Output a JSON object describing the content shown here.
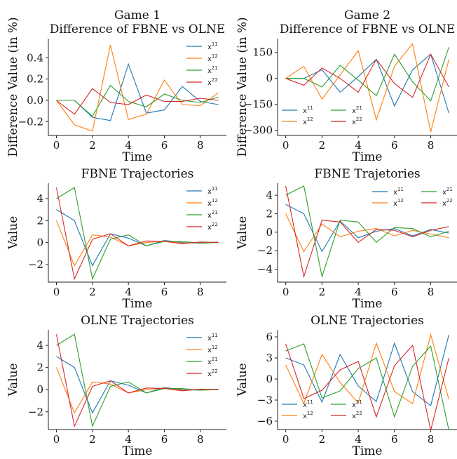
{
  "colors": {
    "x11": "#1f77b4",
    "x12": "#ff7f0e",
    "x21": "#2ca02c",
    "x22": "#d62728"
  },
  "chart_data": [
    {
      "type": "line",
      "title": "Game 1\nDifference of FBNE vs OLNE",
      "xlabel": "Time",
      "ylabel": "Difference Value (in %)",
      "xlim": [
        -0.45,
        9.45
      ],
      "ylim": [
        -0.33,
        0.58
      ],
      "xticks": [
        0,
        2,
        4,
        6,
        8
      ],
      "yticks": [
        -0.2,
        0.0,
        0.2,
        0.4
      ],
      "ytick_labels": [
        "−0.2",
        "0.0",
        "0.2",
        "0.4"
      ],
      "legend": "top-right-column",
      "x": [
        0,
        1,
        2,
        3,
        4,
        5,
        6,
        7,
        8,
        9
      ],
      "series": [
        {
          "name": "x11",
          "values": [
            0,
            0,
            -0.16,
            -0.19,
            0.34,
            -0.12,
            -0.09,
            0.13,
            -0.01,
            -0.04
          ]
        },
        {
          "name": "x12",
          "values": [
            0,
            -0.23,
            -0.29,
            0.52,
            -0.18,
            -0.13,
            0.19,
            -0.04,
            -0.05,
            0.07
          ]
        },
        {
          "name": "x21",
          "values": [
            0,
            0,
            -0.15,
            0.14,
            -0.01,
            -0.06,
            0.06,
            0.0,
            -0.02,
            0.03
          ]
        },
        {
          "name": "x22",
          "values": [
            0,
            -0.13,
            0.11,
            -0.02,
            -0.04,
            0.05,
            -0.01,
            -0.01,
            0.02,
            0.0
          ]
        }
      ]
    },
    {
      "type": "line",
      "title": "Game 2\nDifference of FBNE vs OLNE",
      "xlabel": "Time",
      "ylabel": "Difference Value (in %)",
      "xlim": [
        -0.45,
        9.45
      ],
      "ylim": [
        -330,
        230
      ],
      "xticks": [
        0,
        2,
        4,
        6,
        8
      ],
      "yticks": [
        -300,
        -150,
        0,
        150
      ],
      "ytick_labels": [
        "−300",
        "−150",
        "0",
        "150"
      ],
      "legend": "bottom-left-two-columns",
      "x": [
        0,
        1,
        2,
        3,
        4,
        5,
        6,
        7,
        8,
        9
      ],
      "series": [
        {
          "name": "x11",
          "values": [
            0,
            0,
            50,
            -80,
            10,
            110,
            -160,
            50,
            140,
            -200
          ]
        },
        {
          "name": "x12",
          "values": [
            0,
            70,
            -120,
            20,
            160,
            -240,
            70,
            200,
            -310,
            110
          ]
        },
        {
          "name": "x21",
          "values": [
            0,
            0,
            -50,
            75,
            -10,
            -100,
            140,
            -20,
            -130,
            180
          ]
        },
        {
          "name": "x22",
          "values": [
            0,
            -40,
            60,
            0,
            -80,
            110,
            -30,
            -110,
            140,
            -50
          ]
        }
      ]
    },
    {
      "type": "line",
      "title": "FBNE Trajectories",
      "xlabel": "Time",
      "ylabel": "Value",
      "xlim": [
        -0.45,
        9.45
      ],
      "ylim": [
        -3.6,
        5.4
      ],
      "xticks": [
        0,
        2,
        4,
        6,
        8
      ],
      "yticks": [
        -2,
        0,
        2,
        4
      ],
      "ytick_labels": [
        "−2",
        "0",
        "2",
        "4"
      ],
      "legend": "top-right-column",
      "x": [
        0,
        1,
        2,
        3,
        4,
        5,
        6,
        7,
        8,
        9
      ],
      "series": [
        {
          "name": "x11",
          "values": [
            3,
            2,
            -2.1,
            0.8,
            0.4,
            -0.3,
            0.2,
            0.0,
            -0.05,
            0.05
          ]
        },
        {
          "name": "x12",
          "values": [
            2,
            -2.1,
            0.7,
            0.5,
            -0.3,
            0.0,
            0.15,
            -0.05,
            0.0,
            0.02
          ]
        },
        {
          "name": "x21",
          "values": [
            4,
            5,
            -3.3,
            0.3,
            0.7,
            -0.3,
            0.1,
            0.1,
            -0.05,
            0.0
          ]
        },
        {
          "name": "x22",
          "values": [
            5,
            -3.3,
            0.3,
            0.8,
            -0.3,
            0.15,
            0.1,
            -0.1,
            0.05,
            0.0
          ]
        }
      ]
    },
    {
      "type": "line",
      "title": "FBNE Trajetories",
      "xlabel": "Time",
      "ylabel": "Value",
      "xlim": [
        -0.45,
        9.45
      ],
      "ylim": [
        -5.4,
        5.3
      ],
      "xticks": [
        0,
        2,
        4,
        6,
        8
      ],
      "yticks": [
        -4,
        -2,
        0,
        2,
        4
      ],
      "ytick_labels": [
        "−4",
        "−2",
        "0",
        "2",
        "4"
      ],
      "legend": "top-right-two-columns",
      "x": [
        0,
        1,
        2,
        3,
        4,
        5,
        6,
        7,
        8,
        9
      ],
      "series": [
        {
          "name": "x11",
          "values": [
            3,
            2,
            -2.1,
            1.2,
            -0.6,
            0.1,
            0.4,
            -0.4,
            0.3,
            -0.1
          ]
        },
        {
          "name": "x12",
          "values": [
            2,
            -2.1,
            0.9,
            -0.5,
            0.1,
            0.4,
            -0.4,
            0.2,
            -0.2,
            -0.6
          ]
        },
        {
          "name": "x21",
          "values": [
            4,
            5,
            -4.8,
            1.3,
            1.1,
            -1.1,
            0.5,
            0.4,
            -0.5,
            0.1
          ]
        },
        {
          "name": "x22",
          "values": [
            5,
            -4.8,
            1.3,
            1.1,
            -1.1,
            0.3,
            0.2,
            -0.5,
            0.2,
            0.6
          ]
        }
      ]
    },
    {
      "type": "line",
      "title": "OLNE Trajectories",
      "xlabel": "Time",
      "ylabel": "Value",
      "xlim": [
        -0.45,
        9.45
      ],
      "ylim": [
        -3.6,
        5.4
      ],
      "xticks": [
        0,
        2,
        4,
        6,
        8
      ],
      "yticks": [
        -2,
        0,
        2,
        4
      ],
      "ytick_labels": [
        "−2",
        "0",
        "2",
        "4"
      ],
      "legend": "top-right-column",
      "x": [
        0,
        1,
        2,
        3,
        4,
        5,
        6,
        7,
        8,
        9
      ],
      "series": [
        {
          "name": "x11",
          "values": [
            3,
            2,
            -2.1,
            0.8,
            0.4,
            -0.3,
            0.2,
            0.0,
            -0.05,
            0.05
          ]
        },
        {
          "name": "x12",
          "values": [
            2,
            -2.1,
            0.7,
            0.5,
            -0.3,
            0.0,
            0.15,
            -0.05,
            0.0,
            0.02
          ]
        },
        {
          "name": "x21",
          "values": [
            4,
            5,
            -3.3,
            0.3,
            0.7,
            -0.3,
            0.1,
            0.1,
            -0.05,
            0.0
          ]
        },
        {
          "name": "x22",
          "values": [
            5,
            -3.3,
            0.3,
            0.8,
            -0.3,
            0.15,
            0.1,
            -0.1,
            0.05,
            0.0
          ]
        }
      ]
    },
    {
      "type": "line",
      "title": "OLNE Trajectories",
      "xlabel": "Time",
      "ylabel": "Value",
      "xlim": [
        -0.45,
        9.45
      ],
      "ylim": [
        -7.2,
        7.0
      ],
      "xticks": [
        0,
        2,
        4,
        6,
        8
      ],
      "yticks": [
        -6,
        -3,
        0,
        3,
        6
      ],
      "ytick_labels": [
        "−6",
        "−3",
        "0",
        "3",
        "6"
      ],
      "legend": "bottom-left-two-columns",
      "x": [
        0,
        1,
        2,
        3,
        4,
        5,
        6,
        7,
        8,
        9
      ],
      "series": [
        {
          "name": "x11",
          "values": [
            3,
            2,
            -3.3,
            3.5,
            -1,
            -3.2,
            5.1,
            -1.8,
            -3.8,
            6.3
          ]
        },
        {
          "name": "x12",
          "values": [
            2,
            -3.5,
            3.5,
            -0.5,
            -3.4,
            5.1,
            -1.8,
            -3.5,
            6.3,
            -2.9
          ]
        },
        {
          "name": "x21",
          "values": [
            4,
            5,
            -2.7,
            -1.7,
            1.5,
            3,
            -5.4,
            1.8,
            4.7,
            -7.3
          ]
        },
        {
          "name": "x22",
          "values": [
            5,
            -2.8,
            -1.6,
            1.3,
            2.5,
            -5.4,
            1.9,
            4.8,
            -7.3,
            3
          ]
        }
      ]
    }
  ]
}
